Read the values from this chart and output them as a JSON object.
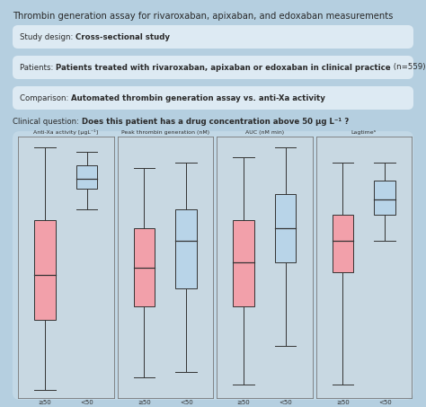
{
  "title": "Thrombin generation assay for rivaroxaban, apixaban, and edoxaban measurements",
  "bg_color": "#b5cfe0",
  "white_box_color": "#ddeaf3",
  "panel_bg_color": "#c2d8e6",
  "inner_panel_color": "#c8d8e2",
  "study_design_label": "Study design: ",
  "study_design_bold": "Cross-sectional study",
  "patients_label": "Patients: ",
  "patients_bold": "Patients treated with rivaroxaban, apixaban or edoxaban in clinical practice",
  "patients_extra": " (n=559)",
  "comparison_label": "Comparison: ",
  "comparison_bold": "Automated thrombin generation assay vs. anti-Xa activity",
  "clinical_label": "Clinical question: ",
  "clinical_bold": "Does this patient has a drug concentration above 50 μg L⁻¹ ?",
  "box_titles": [
    "Anti-Xa activity [μgL⁻¹]",
    "Peak thrombin generation (nM)",
    "AUC (nM min)",
    "Lagtimeᵃ"
  ],
  "pink_color": "#f2a0aa",
  "blue_color": "#b8d4e8",
  "box_edge_color": "#333333",
  "plots": [
    {
      "group1": {
        "whislo": 0.03,
        "q1": 0.3,
        "med": 0.47,
        "q3": 0.68,
        "whishi": 0.96
      },
      "group2": {
        "whislo": 0.72,
        "q1": 0.8,
        "med": 0.84,
        "q3": 0.89,
        "whishi": 0.94
      }
    },
    {
      "group1": {
        "whislo": 0.08,
        "q1": 0.35,
        "med": 0.5,
        "q3": 0.65,
        "whishi": 0.88
      },
      "group2": {
        "whislo": 0.1,
        "q1": 0.42,
        "med": 0.6,
        "q3": 0.72,
        "whishi": 0.9
      }
    },
    {
      "group1": {
        "whislo": 0.05,
        "q1": 0.35,
        "med": 0.52,
        "q3": 0.68,
        "whishi": 0.92
      },
      "group2": {
        "whislo": 0.2,
        "q1": 0.52,
        "med": 0.65,
        "q3": 0.78,
        "whishi": 0.96
      }
    },
    {
      "group1": {
        "whislo": 0.05,
        "q1": 0.48,
        "med": 0.6,
        "q3": 0.7,
        "whishi": 0.9
      },
      "group2": {
        "whislo": 0.6,
        "q1": 0.7,
        "med": 0.76,
        "q3": 0.83,
        "whishi": 0.9
      }
    }
  ]
}
